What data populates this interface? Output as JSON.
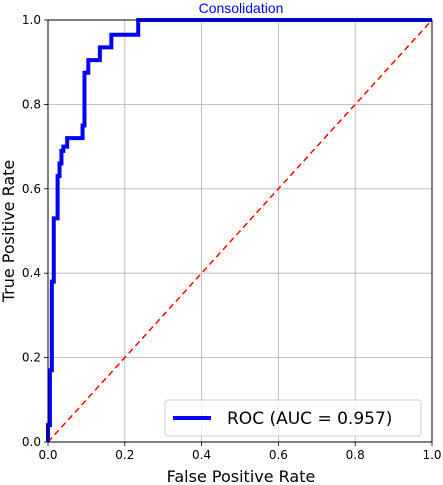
{
  "chart_data": {
    "type": "line",
    "title": "Consolidation",
    "title_color": "#0000ff",
    "xlabel": "False Positive Rate",
    "ylabel": "True Positive Rate",
    "xlim": [
      0.0,
      1.0
    ],
    "ylim": [
      0.0,
      1.0
    ],
    "x_ticks": [
      "0.0",
      "0.2",
      "0.4",
      "0.6",
      "0.8",
      "1.0"
    ],
    "y_ticks": [
      "0.0",
      "0.2",
      "0.4",
      "0.6",
      "0.8",
      "1.0"
    ],
    "grid": true,
    "legend_position": "lower-right",
    "series": [
      {
        "name": "ROC (AUC = 0.957)",
        "color": "#0000ff",
        "style": "solid",
        "x": [
          0.0,
          0.0,
          0.005,
          0.005,
          0.01,
          0.01,
          0.015,
          0.015,
          0.025,
          0.025,
          0.03,
          0.03,
          0.035,
          0.035,
          0.04,
          0.04,
          0.05,
          0.05,
          0.08,
          0.09,
          0.09,
          0.095,
          0.095,
          0.105,
          0.105,
          0.135,
          0.135,
          0.165,
          0.165,
          0.235,
          0.235,
          1.0
        ],
        "y": [
          0.0,
          0.04,
          0.04,
          0.17,
          0.17,
          0.38,
          0.38,
          0.53,
          0.53,
          0.63,
          0.63,
          0.66,
          0.66,
          0.69,
          0.69,
          0.7,
          0.7,
          0.72,
          0.72,
          0.72,
          0.75,
          0.75,
          0.875,
          0.875,
          0.905,
          0.905,
          0.935,
          0.935,
          0.965,
          0.965,
          1.0,
          1.0
        ]
      },
      {
        "color": "#ff0000",
        "style": "dashed",
        "x": [
          0.0,
          1.0
        ],
        "y": [
          0.0,
          1.0
        ]
      }
    ]
  }
}
